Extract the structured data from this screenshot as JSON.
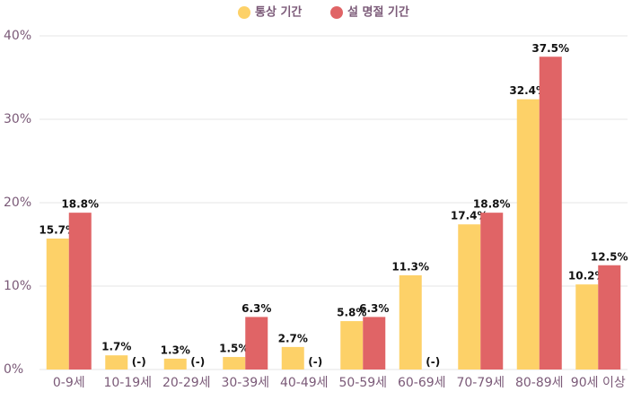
{
  "chart_data": {
    "type": "bar",
    "categories": [
      "0-9세",
      "10-19세",
      "20-29세",
      "30-39세",
      "40-49세",
      "50-59세",
      "60-69세",
      "70-79세",
      "80-89세",
      "90세 이상"
    ],
    "series": [
      {
        "name": "통상 기간",
        "color": "#fdd168",
        "values": [
          15.7,
          1.7,
          1.3,
          1.5,
          2.7,
          5.8,
          11.3,
          17.4,
          32.4,
          10.2
        ],
        "value_labels": [
          "15.7%",
          "1.7%",
          "1.3%",
          "1.5%",
          "2.7%",
          "5.8%",
          "11.3%",
          "17.4%",
          "32.4%",
          "10.2%"
        ]
      },
      {
        "name": "설 명절 기간",
        "color": "#e06466",
        "values": [
          18.8,
          null,
          null,
          6.3,
          null,
          6.3,
          null,
          18.8,
          37.5,
          12.5
        ],
        "value_labels": [
          "18.8%",
          "(-)",
          "(-)",
          "6.3%",
          "(-)",
          "6.3%",
          "(-)",
          "18.8%",
          "37.5%",
          "12.5%"
        ]
      }
    ],
    "ylim": [
      0,
      40
    ],
    "yticks": [
      {
        "value": 0,
        "label": "0%"
      },
      {
        "value": 10,
        "label": "10%"
      },
      {
        "value": 20,
        "label": "20%"
      },
      {
        "value": 30,
        "label": "30%"
      },
      {
        "value": 40,
        "label": "40%"
      }
    ],
    "grid": true
  }
}
